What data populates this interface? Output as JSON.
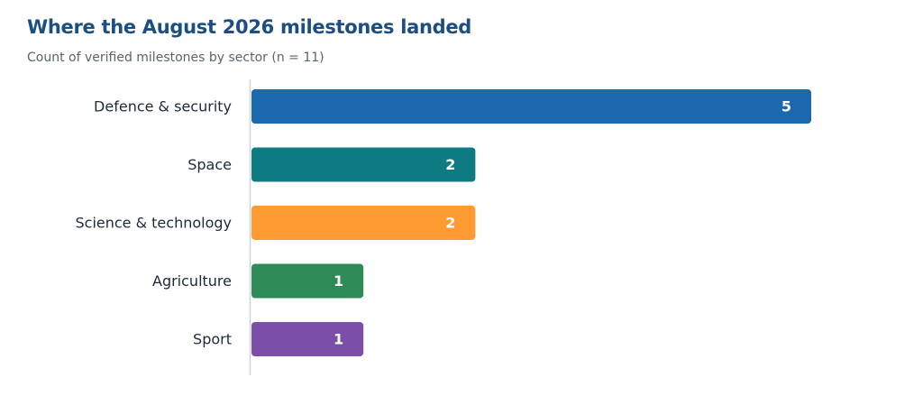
{
  "title": "Where the August 2026 milestones landed",
  "subtitle": "Count of verified milestones by sector (n = 11)",
  "chart_data": {
    "type": "bar",
    "orientation": "horizontal",
    "categories": [
      "Defence & security",
      "Space",
      "Science & technology",
      "Agriculture",
      "Sport"
    ],
    "values": [
      5,
      2,
      2,
      1,
      1
    ],
    "colors": [
      "#1b68ad",
      "#0e7b83",
      "#ff9b33",
      "#2e8b57",
      "#7b4fa8"
    ],
    "title": "Where the August 2026 milestones landed",
    "subtitle": "Count of verified milestones by sector (n = 11)",
    "xlabel": "",
    "ylabel": "",
    "xlim": [
      0,
      5
    ],
    "grid": false,
    "legend": "none",
    "data_labels": "inside-end"
  }
}
